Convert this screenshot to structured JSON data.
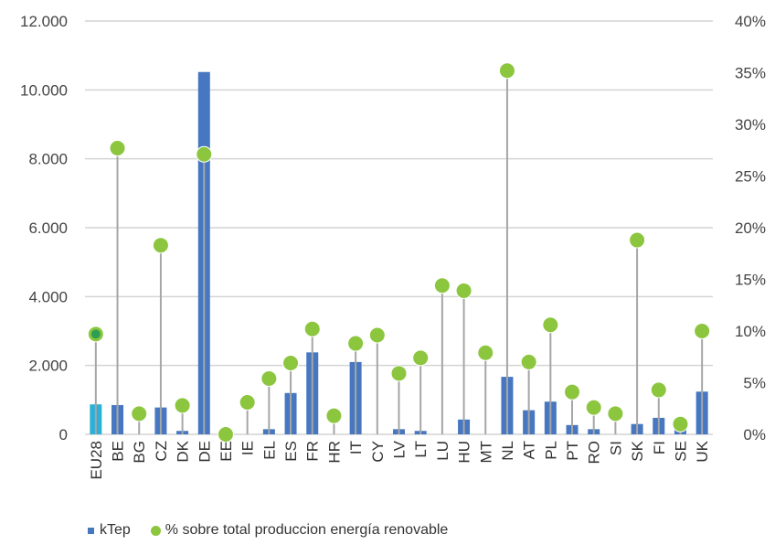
{
  "chart_data": {
    "type": "bar",
    "categories": [
      "EU28",
      "BE",
      "BG",
      "CZ",
      "DK",
      "DE",
      "EE",
      "IE",
      "EL",
      "ES",
      "FR",
      "HR",
      "IT",
      "CY",
      "LV",
      "LT",
      "LU",
      "HU",
      "MT",
      "NL",
      "AT",
      "PL",
      "PT",
      "RO",
      "SI",
      "SK",
      "FI",
      "SE",
      "UK"
    ],
    "series": [
      {
        "name": "kTep",
        "axis": "left",
        "kind": "bar",
        "values": [
          870,
          850,
          0,
          780,
          100,
          10520,
          0,
          0,
          150,
          1200,
          2380,
          0,
          2100,
          0,
          150,
          100,
          0,
          430,
          0,
          1670,
          700,
          950,
          270,
          150,
          0,
          300,
          480,
          250,
          1240
        ]
      },
      {
        "name": "% sobre total produccion energía renovable",
        "axis": "right",
        "kind": "lollipop",
        "values": [
          9.7,
          27.7,
          2.0,
          18.3,
          2.8,
          27.1,
          0.0,
          3.1,
          5.4,
          6.9,
          10.2,
          1.8,
          8.8,
          9.6,
          5.9,
          7.4,
          14.4,
          13.9,
          7.9,
          35.2,
          7.0,
          10.6,
          4.1,
          2.6,
          2.0,
          18.8,
          4.3,
          1.0,
          10.0
        ]
      }
    ],
    "y_left": {
      "ylim": [
        0,
        12000
      ],
      "ticks": [
        "0",
        "2.000",
        "4.000",
        "6.000",
        "8.000",
        "10.000",
        "12.000"
      ]
    },
    "y_right": {
      "ylim": [
        0,
        40
      ],
      "ticks": [
        "0%",
        "5%",
        "10%",
        "15%",
        "20%",
        "25%",
        "30%",
        "35%",
        "40%"
      ]
    },
    "grid": true,
    "legend_position": "bottom-left",
    "colors": {
      "bar": "#4677c0",
      "bar_highlight": "#2bb0d6",
      "stem": "#a6a6a6",
      "dot": "#8cc63f",
      "dot_highlight": "#2e9e52",
      "grid": "#d4d4d4"
    }
  },
  "legend": {
    "items": [
      {
        "label": "kTep",
        "swatch": "bar"
      },
      {
        "label": "% sobre total produccion energía renovable",
        "swatch": "dot"
      }
    ]
  }
}
